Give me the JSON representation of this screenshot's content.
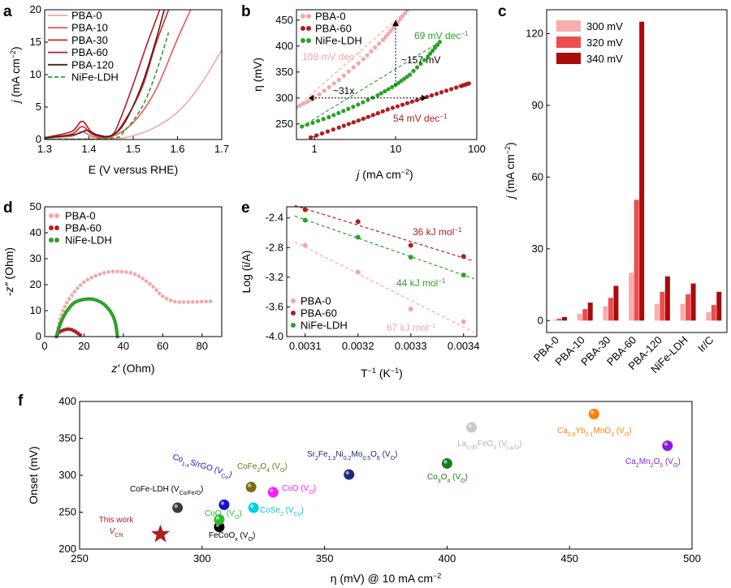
{
  "colors": {
    "pba0": "#f4a7a7",
    "pba10": "#e8585d",
    "pba30": "#e01e26",
    "pba60": "#b01e22",
    "pba120": "#4a1f1f",
    "nife": "#2ca02c",
    "c300": "#f6aeae",
    "c320": "#ee4d4d",
    "c340": "#aa0a0a"
  },
  "chart_data": [
    {
      "panel": "a",
      "type": "line",
      "xlabel": "E (V versus RHE)",
      "ylabel": "j (mA cm−2)",
      "xlim": [
        1.3,
        1.7
      ],
      "ylim": [
        0,
        20
      ],
      "xticks": [
        "1.3",
        "1.4",
        "1.5",
        "1.6",
        "1.7"
      ],
      "yticks": [
        "0",
        "5",
        "10",
        "15",
        "20"
      ],
      "legend_position": "top-left",
      "series": [
        {
          "name": "PBA-0",
          "x": [
            1.3,
            1.45,
            1.5,
            1.55,
            1.6,
            1.65,
            1.7
          ],
          "y": [
            0.1,
            0.1,
            0.6,
            1.9,
            4.2,
            8.2,
            13.8
          ]
        },
        {
          "name": "PBA-10",
          "x": [
            1.3,
            1.36,
            1.385,
            1.41,
            1.45,
            1.5,
            1.55,
            1.6,
            1.63
          ],
          "y": [
            0.3,
            0.5,
            1.2,
            0.4,
            0.4,
            2.6,
            7.5,
            15.5,
            20
          ]
        },
        {
          "name": "PBA-30",
          "x": [
            1.3,
            1.36,
            1.385,
            1.41,
            1.45,
            1.48,
            1.52,
            1.55,
            1.58
          ],
          "y": [
            0.3,
            0.8,
            2.0,
            0.7,
            0.5,
            2.8,
            8.0,
            14.5,
            20
          ]
        },
        {
          "name": "PBA-60",
          "x": [
            1.3,
            1.36,
            1.385,
            1.41,
            1.45,
            1.47,
            1.5,
            1.53,
            1.56
          ],
          "y": [
            0.3,
            1.2,
            2.8,
            0.9,
            0.6,
            3.0,
            8.5,
            14.5,
            20
          ]
        },
        {
          "name": "PBA-120",
          "x": [
            1.3,
            1.37,
            1.395,
            1.42,
            1.45,
            1.48,
            1.52,
            1.55,
            1.57
          ],
          "y": [
            0.2,
            0.8,
            1.4,
            0.7,
            0.6,
            2.5,
            8.5,
            15.0,
            20
          ]
        },
        {
          "name": "NiFe-LDH",
          "x": [
            1.3,
            1.45,
            1.48,
            1.52,
            1.55,
            1.58
          ],
          "y": [
            0.05,
            0.2,
            1.3,
            5.0,
            10.0,
            16.5
          ],
          "dashed": true
        }
      ]
    },
    {
      "panel": "b",
      "type": "scatter",
      "xlabel": "j (mA cm−2)",
      "ylabel": "η (mV)",
      "xscale": "log",
      "xlim": [
        0.6,
        100
      ],
      "ylim": [
        220,
        470
      ],
      "xticks": [
        "1",
        "10",
        "100"
      ],
      "yticks": [
        "250",
        "300",
        "350",
        "400",
        "450"
      ],
      "legend_position": "top-left",
      "series": [
        {
          "name": "PBA-0",
          "x": [
            0.6,
            1,
            2,
            4,
            7,
            10,
            14
          ],
          "y": [
            282,
            300,
            335,
            375,
            412,
            440,
            470
          ]
        },
        {
          "name": "PBA-60",
          "x": [
            0.9,
            2,
            4,
            8,
            16,
            32,
            64,
            80
          ],
          "y": [
            224,
            243,
            260,
            278,
            293,
            308,
            323,
            328
          ]
        },
        {
          "name": "NiFe-LDH",
          "x": [
            0.7,
            1.5,
            3,
            6,
            10,
            15,
            25,
            35
          ],
          "y": [
            245,
            263,
            283,
            305,
            325,
            345,
            380,
            408
          ]
        }
      ],
      "annotations": [
        "108 mV dec−1",
        "69 mV dec−1",
        "54 mV dec−1",
        "~157 mV",
        "~31x"
      ]
    },
    {
      "panel": "c",
      "type": "bar",
      "ylabel": "j (mA cm−2)",
      "ylim": [
        -5,
        130
      ],
      "yticks": [
        "0",
        "30",
        "60",
        "90",
        "120"
      ],
      "categories": [
        "PBA-0",
        "PBA-10",
        "PBA-30",
        "PBA-60",
        "PBA-120",
        "NiFe-LDH",
        "Ir/C"
      ],
      "legend_position": "top-left",
      "series": [
        {
          "name": "300 mV",
          "values": [
            0.3,
            2.8,
            6.0,
            20.0,
            7.0,
            7.0,
            3.5
          ]
        },
        {
          "name": "320 mV",
          "values": [
            0.8,
            4.8,
            9.5,
            50.5,
            12.0,
            11.0,
            6.5
          ]
        },
        {
          "name": "340 mV",
          "values": [
            1.5,
            7.5,
            14.5,
            125.0,
            18.5,
            15.5,
            12.0
          ]
        }
      ]
    },
    {
      "panel": "d",
      "type": "scatter",
      "xlabel": "z′ (Ohm)",
      "ylabel": "-z″ (Ohm)",
      "xlim": [
        0,
        90
      ],
      "ylim": [
        0,
        50
      ],
      "xticks": [
        "0",
        "20",
        "40",
        "60",
        "80"
      ],
      "yticks": [
        "0",
        "10",
        "20",
        "30",
        "40",
        "50"
      ],
      "legend_position": "top-left",
      "series": [
        {
          "name": "PBA-0",
          "x": [
            6,
            8,
            12,
            20,
            30,
            38,
            46,
            54,
            60,
            66,
            72,
            78,
            82,
            86
          ],
          "y": [
            0,
            7,
            14,
            21,
            24.5,
            25,
            24,
            20,
            15.5,
            13.5,
            13.3,
            13.4,
            13.5,
            13.6
          ]
        },
        {
          "name": "PBA-60",
          "x": [
            6,
            7,
            9,
            11,
            13,
            15,
            17,
            19
          ],
          "y": [
            0,
            1.5,
            2.3,
            2.8,
            2.8,
            2.2,
            1.2,
            0
          ]
        },
        {
          "name": "NiFe-LDH",
          "x": [
            6,
            8,
            11,
            15,
            20,
            25,
            30,
            34,
            36,
            37
          ],
          "y": [
            0,
            5,
            9.5,
            13,
            14.3,
            14.3,
            12.5,
            9,
            5,
            0
          ]
        }
      ]
    },
    {
      "panel": "e",
      "type": "scatter",
      "xlabel": "T−1 (K−1)",
      "ylabel": "Log (i/A)",
      "xlim": [
        0.003065,
        0.003425
      ],
      "ylim": [
        -4.0,
        -2.25
      ],
      "xticks": [
        "0.0031",
        "0.0032",
        "0.0033",
        "0.0034"
      ],
      "yticks": [
        "-2.4",
        "-2.8",
        "-3.2",
        "-3.6",
        "-4.0"
      ],
      "legend_position": "bottom-left",
      "series": [
        {
          "name": "PBA-0",
          "x": [
            0.0031,
            0.0032,
            0.0033,
            0.0034
          ],
          "y": [
            -2.77,
            -3.13,
            -3.63,
            -3.8
          ],
          "fit_label": "67 kJ mol−1"
        },
        {
          "name": "PBA-60",
          "x": [
            0.0031,
            0.0032,
            0.0033,
            0.0034
          ],
          "y": [
            -2.29,
            -2.45,
            -2.77,
            -2.92
          ],
          "fit_label": "36 kJ mol−1"
        },
        {
          "name": "NiFe-LDH",
          "x": [
            0.0031,
            0.0032,
            0.0033,
            0.0034
          ],
          "y": [
            -2.43,
            -2.66,
            -2.93,
            -3.17
          ],
          "fit_label": "44 kJ mol−1"
        }
      ]
    },
    {
      "panel": "f",
      "type": "scatter",
      "xlabel": "η (mV) @ 10 mA cm−2",
      "ylabel": "Onset (mV)",
      "xlim": [
        250,
        500
      ],
      "ylim": [
        200,
        400
      ],
      "xticks": [
        "250",
        "300",
        "350",
        "400",
        "450",
        "500"
      ],
      "yticks": [
        "200",
        "250",
        "300",
        "350",
        "400"
      ],
      "points": [
        {
          "label": "This work",
          "sub": "VCN",
          "x": 283,
          "y": 220,
          "color": "#b01e22",
          "marker": "star"
        },
        {
          "label": "CoFe-LDH (VCo/Fe/O)",
          "x": 290,
          "y": 256,
          "color": "#3c3c3c"
        },
        {
          "label": "FeCoOx (VO)",
          "x": 307,
          "y": 230,
          "color": "#000000"
        },
        {
          "label": "COx (VO)",
          "x": 307,
          "y": 240,
          "color": "#26c026"
        },
        {
          "label": "Co1-xS/rGO (VCo)",
          "x": 309,
          "y": 260,
          "color": "#1414c8"
        },
        {
          "label": "CoFe2O4 (VO)",
          "x": 320,
          "y": 284,
          "color": "#7a6a1a"
        },
        {
          "label": "CoSe2 (VCo)",
          "x": 321,
          "y": 256,
          "color": "#00d0e0"
        },
        {
          "label": "CoO (VO)",
          "x": 329,
          "y": 277,
          "color": "#ff1aff"
        },
        {
          "label": "Sr2Fe1.3Ni0.2Mo0.5O6 (VO)",
          "x": 360,
          "y": 301,
          "color": "#1a2a78"
        },
        {
          "label": "Co3O4 (VO)",
          "x": 400,
          "y": 316,
          "color": "#1a7a1a"
        },
        {
          "label": "La0.95FeO3 (VLa/O)",
          "x": 410,
          "y": 365,
          "color": "#c8c8c8"
        },
        {
          "label": "Ca0.9Yb0.1MnO3 (VO)",
          "x": 460,
          "y": 383,
          "color": "#ff7f00"
        },
        {
          "label": "Ca2Mn2O5 (VO)",
          "x": 490,
          "y": 340,
          "color": "#8a1ae0"
        }
      ]
    }
  ],
  "panels": {
    "a": {
      "label": "a",
      "xlabel": "E (V versus RHE)",
      "ylabel_main": "j",
      "ylabel_rest": " (mA cm",
      "ylabel_sup": "−2",
      "ylabel_close": ")",
      "legend": [
        "PBA-0",
        "PBA-10",
        "PBA-30",
        "PBA-60",
        "PBA-120",
        "NiFe-LDH"
      ]
    },
    "b": {
      "label": "b",
      "xlabel_main": "j",
      "xlabel_rest": " (mA cm",
      "xlabel_sup": "−2",
      "xlabel_close": ")",
      "ylabel": "η (mV)",
      "legend": [
        "PBA-0",
        "PBA-60",
        "NiFe-LDH"
      ],
      "ann_pba0": "108 mV dec",
      "ann_nife": "69 mV dec",
      "ann_pba60": "54 mV dec",
      "ann_sup": "−1",
      "ann_157": "~157 mV",
      "ann_31x": "~31x"
    },
    "c": {
      "label": "c",
      "ylabel_main": "j",
      "ylabel_rest": " (mA cm",
      "ylabel_sup": "−2",
      "ylabel_close": ")",
      "legend": [
        "300 mV",
        "320 mV",
        "340 mV"
      ]
    },
    "d": {
      "label": "d",
      "xlabel_main": "z′",
      "xlabel_rest": " (Ohm)",
      "ylabel_main": "-z″",
      "ylabel_rest": " (Ohm)",
      "legend": [
        "PBA-0",
        "PBA-60",
        "NiFe-LDH"
      ]
    },
    "e": {
      "label": "e",
      "xlabel": "T",
      "xlabel_sup": "−1",
      "xlabel_rest": " (K",
      "xlabel_sup2": "−1",
      "xlabel_close": ")",
      "ylabel": "Log (i/A)",
      "legend": [
        "PBA-0",
        "PBA-60",
        "NiFe-LDH"
      ],
      "ann_pba60": "36 kJ mol",
      "ann_nife": "44 kJ mol",
      "ann_pba0": "67 kJ mol",
      "ann_sup": "−1"
    },
    "f": {
      "label": "f",
      "xlabel": "η (mV) @ 10 mA cm",
      "xlabel_sup": "−2",
      "ylabel": "Onset (mV)",
      "labels": {
        "thiswork": "This work",
        "thiswork_sub_main": "V",
        "thiswork_sub_s": "CN",
        "cofe": "CoFe-LDH (V",
        "cofe_s": "Co/Fe/O",
        "close": ")",
        "feco": "FeCoO",
        "x_s": "x",
        "vo_open": " (V",
        "o_s": "O",
        "cox": "CoO",
        "co1": "Co",
        "co1_s": "1-x",
        "co1_b": "S/rGO (V",
        "co_s": "Co",
        "cofe2": "CoFe",
        "two": "2",
        "four": "4",
        "o": "O",
        "cose": "CoSe",
        "coo": "CoO",
        "sr": "Sr",
        "fe13": "Fe",
        "s13": "1.3",
        "ni": "Ni",
        "s02": "0.2",
        "mo": "Mo",
        "s05": "0.5",
        "six": "6",
        "co3": "Co",
        "three": "3",
        "la": "La",
        "s095": "0.95",
        "feo": "FeO",
        "lao_s": "La/O",
        "ca": "Ca",
        "s09": "0.9",
        "yb": "Yb",
        "s01": "0.1",
        "mno": "MnO",
        "mn": "Mn",
        "five": "5"
      }
    }
  }
}
